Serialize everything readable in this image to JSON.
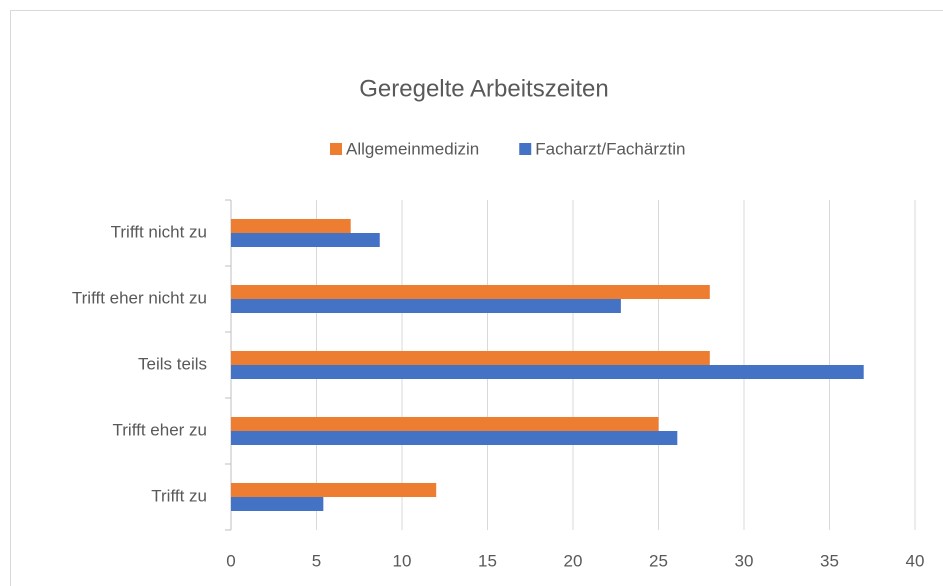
{
  "chart_data": {
    "type": "hbar",
    "title": "Geregelte Arbeitszeiten",
    "categories": [
      "Trifft nicht zu",
      "Trifft eher nicht zu",
      "Teils teils",
      "Trifft eher zu",
      "Trifft zu"
    ],
    "series": [
      {
        "name": "Allgemeinmedizin",
        "color": "#ed7d31",
        "values": [
          7,
          28,
          28,
          25,
          12
        ]
      },
      {
        "name": "Facharzt/Fachärztin",
        "color": "#4472c4",
        "values": [
          8.7,
          22.8,
          37,
          26.1,
          5.4
        ]
      }
    ],
    "xlim": [
      0,
      40
    ],
    "xticks": [
      0,
      5,
      10,
      15,
      20,
      25,
      30,
      35,
      40
    ],
    "grid": true,
    "legend": "top"
  }
}
